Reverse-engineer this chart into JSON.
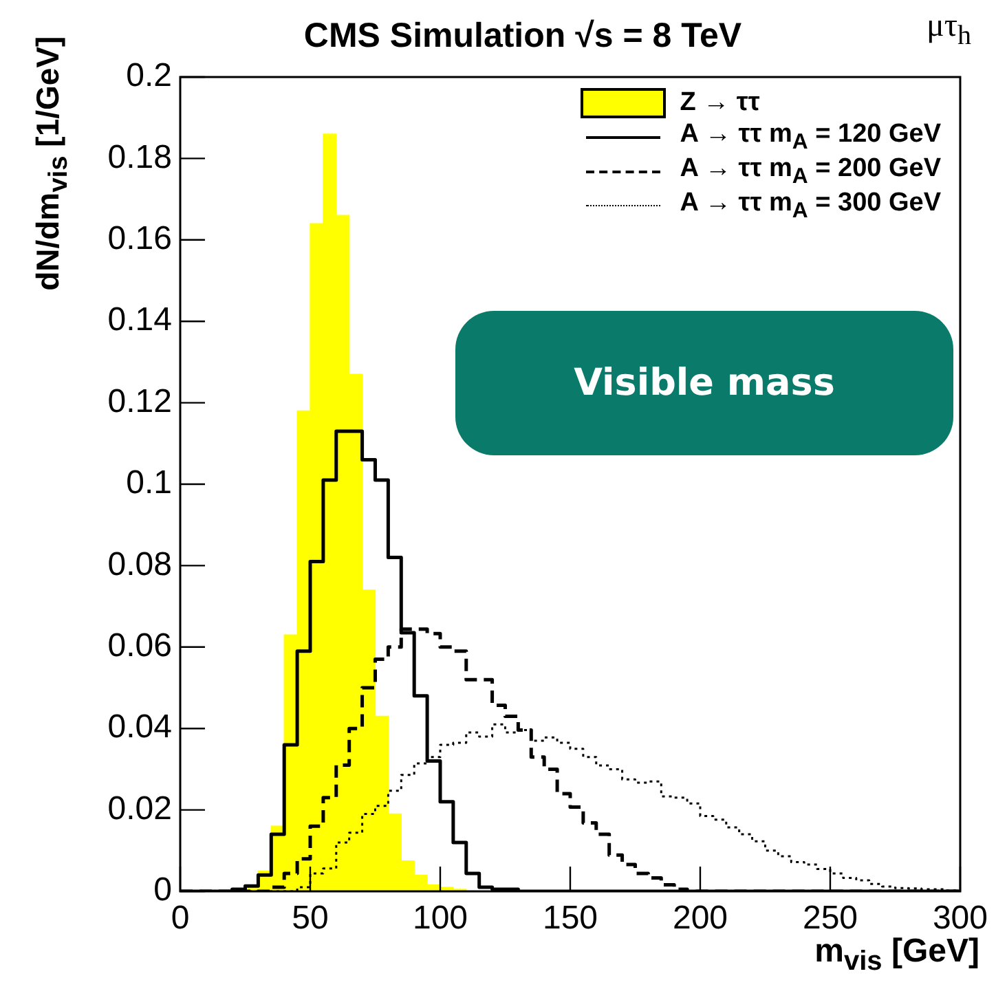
{
  "chart_data": {
    "type": "histogram",
    "title": "CMS Simulation √s = 8 TeV",
    "xlabel": "m$_{vis}$ [GeV]",
    "ylabel": "dN/dm$_{vis}$ [1/GeV]",
    "annotations": [
      "μτ$_{h}$",
      "Visible mass"
    ],
    "bins": [
      0,
      5,
      10,
      15,
      20,
      25,
      30,
      35,
      40,
      45,
      50,
      55,
      60,
      65,
      70,
      75,
      80,
      85,
      90,
      95,
      100,
      105,
      110,
      115,
      120,
      125,
      130,
      135,
      140,
      145,
      150,
      155,
      160,
      165,
      170,
      175,
      180,
      185,
      190,
      195,
      200,
      205,
      210,
      215,
      220,
      225,
      230,
      235,
      240,
      245,
      250,
      255,
      260,
      265,
      270,
      275,
      280,
      285,
      290,
      295,
      300
    ],
    "series": [
      {
        "name": "Z → ττ",
        "color": "#ffff00",
        "values": [
          0,
          0,
          0,
          0,
          0.0005,
          0.001,
          0.005,
          0.016,
          0.063,
          0.118,
          0.164,
          0.186,
          0.166,
          0.127,
          0.074,
          0.043,
          0.019,
          0.0075,
          0.004,
          0.0016,
          0.001,
          0.0005,
          0,
          0,
          0,
          0,
          0,
          0,
          0,
          0,
          0,
          0,
          0,
          0,
          0,
          0,
          0,
          0,
          0,
          0,
          0,
          0,
          0,
          0,
          0,
          0,
          0,
          0,
          0,
          0,
          0,
          0,
          0,
          0,
          0,
          0,
          0,
          0,
          0,
          0
        ]
      },
      {
        "name": "A → ττ m$_{A}$ = 120 GeV",
        "type": "step",
        "color": "#000000",
        "line_style": "solid",
        "x": [
          0,
          5,
          10,
          15,
          20,
          25,
          30,
          35,
          40,
          45,
          50,
          55,
          60,
          65,
          70,
          75,
          80,
          85,
          90,
          95,
          100,
          105,
          110,
          115,
          120,
          125,
          130,
          135,
          140,
          145,
          150,
          155,
          160,
          165,
          170,
          175,
          180,
          185,
          190,
          195,
          200,
          205,
          210,
          215,
          220,
          225,
          230,
          235,
          240,
          245,
          250,
          255,
          260,
          265,
          270,
          275,
          280,
          285,
          290,
          295,
          300
        ],
        "values": [
          0,
          0,
          0,
          0,
          0.0005,
          0.0013,
          0.004,
          0.014,
          0.036,
          0.059,
          0.081,
          0.101,
          0.113,
          0.113,
          0.106,
          0.101,
          0.082,
          0.0635,
          0.048,
          0.032,
          0.022,
          0.012,
          0.0044,
          0.001,
          0.0005,
          0.0005,
          0,
          0,
          0,
          0,
          0,
          0,
          0,
          0,
          0,
          0,
          0,
          0,
          0,
          0,
          0,
          0,
          0,
          0,
          0,
          0,
          0,
          0,
          0,
          0,
          0,
          0,
          0,
          0,
          0,
          0,
          0,
          0,
          0,
          0,
          0
        ]
      },
      {
        "name": "A → ττ m$_{A}$ = 200 GeV",
        "type": "step",
        "color": "#000000",
        "line_style": "dashed",
        "x": [
          0,
          5,
          10,
          15,
          20,
          25,
          30,
          35,
          40,
          45,
          50,
          55,
          60,
          65,
          70,
          75,
          80,
          85,
          90,
          95,
          100,
          105,
          110,
          115,
          120,
          125,
          130,
          135,
          140,
          145,
          150,
          155,
          160,
          165,
          170,
          175,
          180,
          185,
          190,
          195,
          200,
          205,
          210,
          215,
          220,
          225,
          230,
          235,
          240,
          245,
          250,
          255,
          260,
          265,
          270,
          275,
          280,
          285,
          290,
          295,
          300
        ],
        "values": [
          0,
          0,
          0,
          0,
          0,
          0,
          0,
          0.001,
          0.0044,
          0.008,
          0.016,
          0.023,
          0.031,
          0.04,
          0.05,
          0.057,
          0.06,
          0.0644,
          0.0644,
          0.0633,
          0.06,
          0.059,
          0.052,
          0.052,
          0.0457,
          0.043,
          0.0396,
          0.033,
          0.03,
          0.024,
          0.0207,
          0.0168,
          0.014,
          0.0089,
          0.0066,
          0.0044,
          0.0033,
          0.0016,
          0.0005,
          0,
          0,
          0,
          0,
          0,
          0,
          0,
          0,
          0,
          0,
          0,
          0,
          0,
          0,
          0,
          0,
          0,
          0,
          0,
          0,
          0,
          0
        ]
      },
      {
        "name": "A → ττ m$_{A}$ = 300 GeV",
        "type": "step",
        "color": "#000000",
        "line_style": "dotted",
        "x": [
          0,
          5,
          10,
          15,
          20,
          25,
          30,
          35,
          40,
          45,
          50,
          55,
          60,
          65,
          70,
          75,
          80,
          85,
          90,
          95,
          100,
          105,
          110,
          115,
          120,
          125,
          130,
          135,
          140,
          145,
          150,
          155,
          160,
          165,
          170,
          175,
          180,
          185,
          190,
          195,
          200,
          205,
          210,
          215,
          220,
          225,
          230,
          235,
          240,
          245,
          250,
          255,
          260,
          265,
          270,
          275,
          280,
          285,
          290,
          295,
          300
        ],
        "values": [
          0,
          0,
          0,
          0,
          0,
          0,
          0,
          0,
          0,
          0.001,
          0.0044,
          0.0056,
          0.012,
          0.0144,
          0.019,
          0.021,
          0.0247,
          0.0286,
          0.0314,
          0.033,
          0.036,
          0.0365,
          0.039,
          0.038,
          0.041,
          0.039,
          0.0396,
          0.037,
          0.0378,
          0.0365,
          0.035,
          0.033,
          0.0309,
          0.03,
          0.0275,
          0.0267,
          0.027,
          0.0233,
          0.023,
          0.0216,
          0.0185,
          0.0176,
          0.0157,
          0.014,
          0.0123,
          0.01,
          0.0086,
          0.0072,
          0.0066,
          0.0055,
          0.0044,
          0.0033,
          0.0027,
          0.0018,
          0.0012,
          0.0008,
          0.0007,
          0.0005,
          0.0005,
          0.0002,
          0.0002
        ]
      }
    ],
    "xlim": [
      0,
      300
    ],
    "xticks": [
      0,
      50,
      100,
      150,
      200,
      250,
      300
    ],
    "ylim": [
      0,
      0.2
    ],
    "yticks": [
      0,
      0.02,
      0.04,
      0.06,
      0.08,
      0.1,
      0.12,
      0.14,
      0.16,
      0.18,
      0.2
    ],
    "grid": false,
    "legend": "top right"
  }
}
